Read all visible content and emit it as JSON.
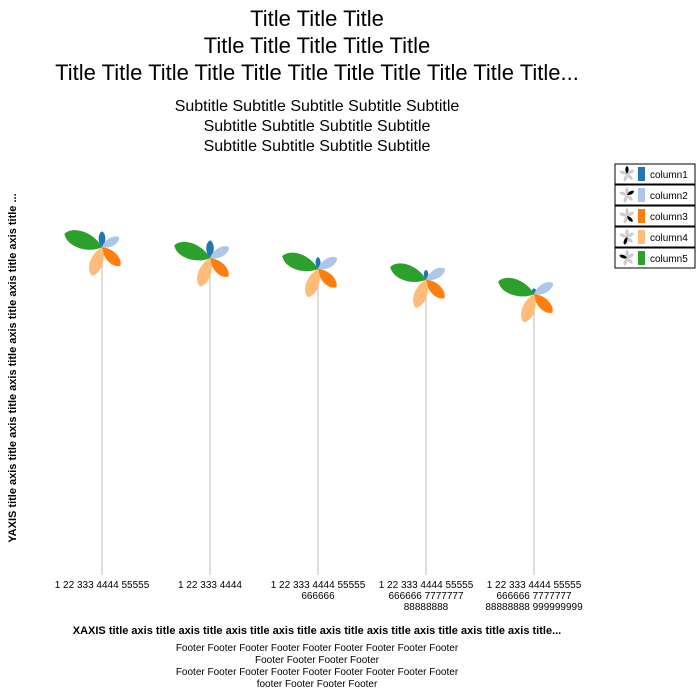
{
  "chart_data": {
    "type": "flower",
    "title_lines": [
      "Title Title Title",
      "Title Title Title Title Title",
      "Title Title Title Title Title Title Title Title Title Title Title..."
    ],
    "subtitle_lines": [
      "Subtitle Subtitle Subtitle Subtitle Subtitle",
      "Subtitle Subtitle Subtitle Subtitle",
      "Subtitle Subtitle Subtitle Subtitle"
    ],
    "xlabel": "XAXIS title axis title axis title axis title axis title axis title axis title axis title axis title axis title...",
    "ylabel": "YAXIS title axis title axis title axis title axis title axis title axis title ...",
    "footer_lines": [
      "Footer Footer Footer Footer Footer Footer Footer Footer Footer",
      "Footer Footer Footer Footer",
      "Footer Footer Footer Footer Footer Footer Footer Footer Footer",
      "footer Footer Footer Footer"
    ],
    "categories": [
      [
        "1 22 333 4444 55555"
      ],
      [
        "1 22 333 4444"
      ],
      [
        "1 22 333 4444 55555",
        "666666"
      ],
      [
        "1 22 333 4444 55555",
        "666666 7777777",
        "88888888"
      ],
      [
        "1 22 333 4444 55555",
        "666666 7777777",
        "88888888 999999999"
      ]
    ],
    "flower_height": [
      91,
      88,
      85,
      82,
      78
    ],
    "ylim": [
      0,
      100
    ],
    "legend_position": "right",
    "series": [
      {
        "name": "column1",
        "color": "#1f77b4",
        "values": [
          0.4,
          0.45,
          0.3,
          0.25,
          0.15
        ]
      },
      {
        "name": "column2",
        "color": "#aec7e8",
        "values": [
          0.5,
          0.55,
          0.55,
          0.55,
          0.55
        ]
      },
      {
        "name": "column3",
        "color": "#ff7f0e",
        "values": [
          0.65,
          0.65,
          0.65,
          0.65,
          0.65
        ]
      },
      {
        "name": "column4",
        "color": "#ffbb78",
        "values": [
          0.75,
          0.75,
          0.75,
          0.75,
          0.75
        ]
      },
      {
        "name": "column5",
        "color": "#2ca02c",
        "values": [
          1.0,
          0.95,
          0.95,
          0.95,
          0.95
        ]
      }
    ]
  }
}
